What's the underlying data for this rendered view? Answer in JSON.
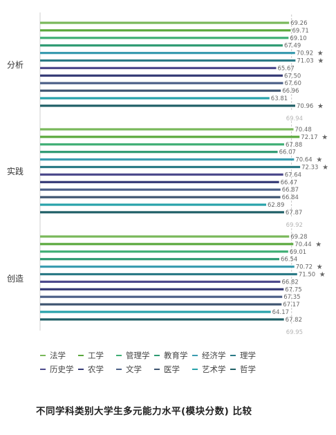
{
  "chart_data": {
    "type": "bar",
    "orientation": "horizontal",
    "title": "不同学科类别大学生多元能力水平(模块分数) 比较",
    "xlim": [
      0,
      75
    ],
    "grid": false,
    "legend_position": "bottom",
    "star_marker": "★",
    "subjects": [
      {
        "name": "法学",
        "color": "#79b85a"
      },
      {
        "name": "工学",
        "color": "#5aa83c"
      },
      {
        "name": "管理学",
        "color": "#3fae74"
      },
      {
        "name": "教育学",
        "color": "#2e9a72"
      },
      {
        "name": "经济学",
        "color": "#3a9cb0"
      },
      {
        "name": "理学",
        "color": "#2b7a86"
      },
      {
        "name": "历史学",
        "color": "#4d4a8c"
      },
      {
        "name": "农学",
        "color": "#353a76"
      },
      {
        "name": "文学",
        "color": "#4c6088"
      },
      {
        "name": "医学",
        "color": "#3d5470"
      },
      {
        "name": "艺术学",
        "color": "#27a2aa"
      },
      {
        "name": "哲学",
        "color": "#1f5f66"
      }
    ],
    "groups": [
      {
        "category": "分析",
        "values": [
          69.26,
          69.71,
          69.1,
          67.49,
          70.92,
          71.03,
          65.67,
          67.5,
          67.6,
          66.96,
          63.81,
          70.96
        ],
        "labels": [
          "69.26",
          "69.71",
          "69.10",
          "67.49",
          "70.92",
          "71.03",
          "65.67",
          "67.50",
          "67.60",
          "66.96",
          "63.81",
          "70.96"
        ],
        "starred": [
          false,
          false,
          false,
          false,
          true,
          true,
          false,
          false,
          false,
          false,
          false,
          true
        ],
        "average": 69.94,
        "average_label": "69.94"
      },
      {
        "category": "实践",
        "values": [
          70.48,
          72.17,
          67.88,
          66.07,
          70.64,
          72.33,
          67.64,
          66.47,
          66.87,
          66.84,
          62.89,
          67.87
        ],
        "labels": [
          "70.48",
          "72.17",
          "67.88",
          "66.07",
          "70.64",
          "72.33",
          "67.64",
          "66.47",
          "66.87",
          "66.84",
          "62.89",
          "67.87"
        ],
        "starred": [
          false,
          true,
          false,
          false,
          true,
          true,
          false,
          false,
          false,
          false,
          false,
          false
        ],
        "average": 69.92,
        "average_label": "69.92"
      },
      {
        "category": "创造",
        "values": [
          69.28,
          70.44,
          69.01,
          66.54,
          70.72,
          71.5,
          66.82,
          67.75,
          67.35,
          67.17,
          64.17,
          67.82
        ],
        "labels": [
          "69.28",
          "70.44",
          "69.01",
          "66.54",
          "70.72",
          "71.50",
          "66.82",
          "67.75",
          "67.35",
          "67.17",
          "64.17",
          "67.82"
        ],
        "starred": [
          false,
          true,
          false,
          false,
          true,
          true,
          false,
          false,
          false,
          false,
          false,
          false
        ],
        "average": 69.95,
        "average_label": "69.95"
      }
    ]
  }
}
